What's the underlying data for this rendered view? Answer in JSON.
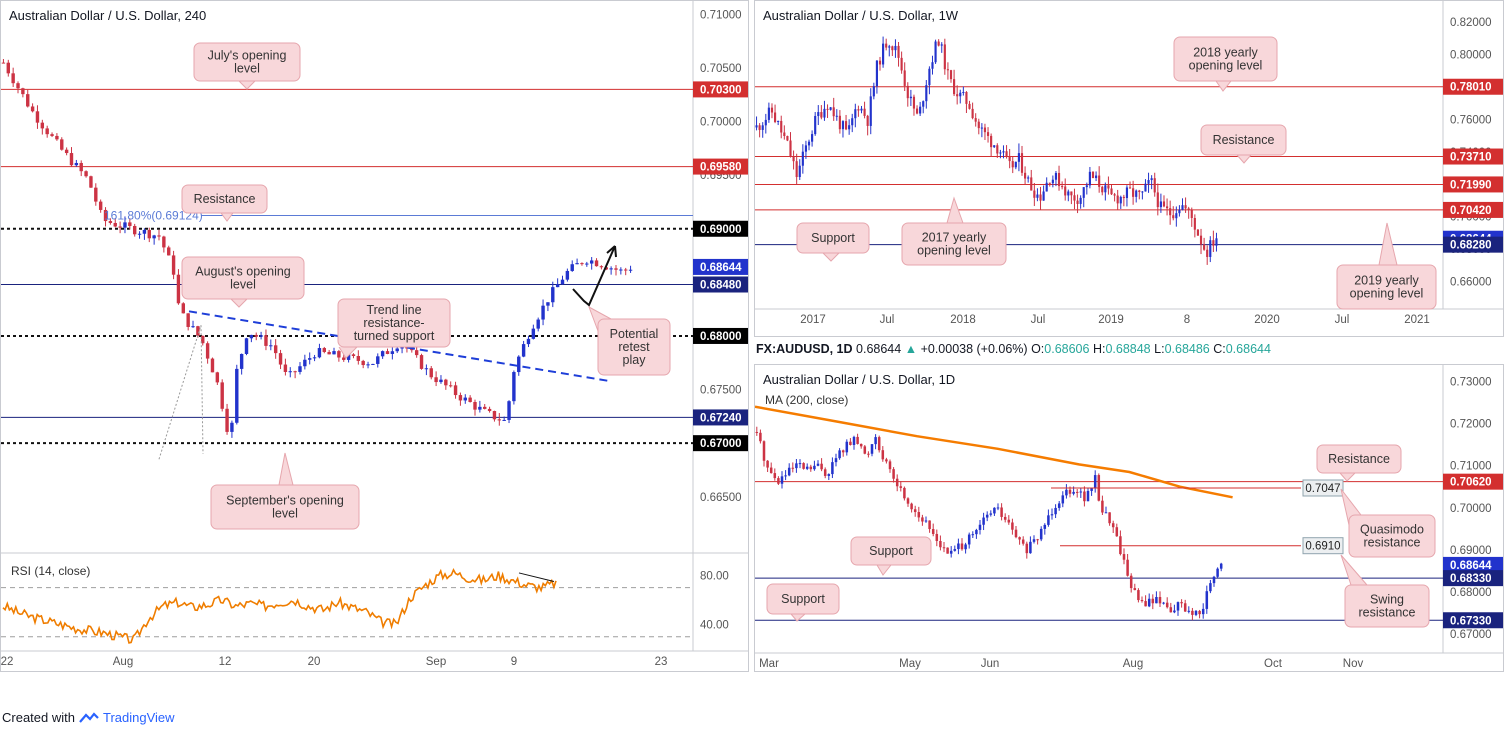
{
  "colors": {
    "up": "#2233cc",
    "down": "#cc3344",
    "support": "#1a237e",
    "resistance": "#d32f2f",
    "fib": "#5b7bd6",
    "ma": "#f57c00",
    "rsi": "#ef7d00",
    "box": "#f8d7da",
    "boxBorder": "#e6a6ad"
  },
  "footer": {
    "prefix": "Created with",
    "brand": "TradingView",
    "logo_icon": "tradingview-logo-icon"
  },
  "info_bar": {
    "symbol": "FX:AUDUSD, 1D",
    "last": "0.68644",
    "change_arrow": "▲",
    "change": "+0.00038 (+0.06%)",
    "open_label": "O:",
    "open": "0.68606",
    "high_label": "H:",
    "high": "0.68848",
    "low_label": "L:",
    "low": "0.68486",
    "close_label": "C:",
    "close": "0.68644"
  },
  "chart_data": [
    {
      "id": "h4",
      "type": "candlestick",
      "title": "Australian Dollar / U.S. Dollar, 240",
      "ylim": [
        0.6605,
        0.7105
      ],
      "y_ticks": [
        "0.71000",
        "0.70500",
        "0.70000",
        "0.69500",
        "0.69000",
        "0.68500",
        "0.68000",
        "0.67500",
        "0.67000",
        "0.66500"
      ],
      "x_ticks": [
        "22",
        "Aug",
        "12",
        "20",
        "Sep",
        "9",
        "23"
      ],
      "price_labels": [
        {
          "value": 0.703,
          "text": "0.70300",
          "kind": "resistance"
        },
        {
          "value": 0.6958,
          "text": "0.69580",
          "kind": "resistance"
        },
        {
          "value": 0.69,
          "text": "0.69000",
          "kind": "round"
        },
        {
          "value": 0.68644,
          "text": "0.68644",
          "kind": "last"
        },
        {
          "value": 0.6848,
          "text": "0.68480",
          "kind": "support"
        },
        {
          "value": 0.68,
          "text": "0.68000",
          "kind": "round"
        },
        {
          "value": 0.6724,
          "text": "0.67240",
          "kind": "support"
        },
        {
          "value": 0.67,
          "text": "0.67000",
          "kind": "round"
        }
      ],
      "fib_label": "161.80%(0.69124)",
      "annotations": [
        "July's opening level",
        "Resistance",
        "August's opening level",
        "Trend line resistance-turned support",
        "Potential retest play",
        "September's opening level"
      ],
      "path": [
        [
          0,
          0.7055
        ],
        [
          10,
          0.701
        ],
        [
          20,
          0.6975
        ],
        [
          30,
          0.6945
        ],
        [
          35,
          0.6908
        ],
        [
          45,
          0.69
        ],
        [
          55,
          0.6893
        ],
        [
          60,
          0.686
        ],
        [
          62,
          0.6823
        ],
        [
          70,
          0.6795
        ],
        [
          75,
          0.676
        ],
        [
          78,
          0.6725
        ],
        [
          80,
          0.67
        ],
        [
          82,
          0.6765
        ],
        [
          86,
          0.6805
        ],
        [
          95,
          0.679
        ],
        [
          100,
          0.676
        ],
        [
          110,
          0.6785
        ],
        [
          130,
          0.6775
        ],
        [
          140,
          0.6795
        ],
        [
          150,
          0.6765
        ],
        [
          160,
          0.6745
        ],
        [
          170,
          0.6728
        ],
        [
          177,
          0.672
        ],
        [
          180,
          0.677
        ],
        [
          186,
          0.6808
        ],
        [
          192,
          0.6835
        ],
        [
          198,
          0.6858
        ],
        [
          205,
          0.6872
        ],
        [
          210,
          0.6868
        ],
        [
          218,
          0.686
        ],
        [
          221,
          0.6864
        ]
      ],
      "xmax": 245,
      "rsi": {
        "label": "RSI (14, close)",
        "ylim": [
          20,
          95
        ],
        "levels": [
          70,
          30
        ],
        "y_ticks": [
          "80.00",
          "40.00"
        ],
        "values": [
          55,
          50,
          46,
          43,
          40,
          37,
          35,
          33,
          30,
          27,
          45,
          55,
          58,
          54,
          56,
          60,
          55,
          57,
          55,
          58,
          60,
          55,
          52,
          58,
          54,
          50,
          42,
          40,
          62,
          72,
          80,
          82,
          78,
          76,
          80,
          76,
          72,
          70,
          74
        ]
      }
    },
    {
      "id": "w1",
      "type": "candlestick",
      "title": "Australian Dollar / U.S. Dollar, 1W",
      "ylim": [
        0.645,
        0.828
      ],
      "y_ticks": [
        "0.82000",
        "0.80000",
        "0.78000",
        "0.76000",
        "0.74000",
        "0.72000",
        "0.70000",
        "0.68000",
        "0.66000"
      ],
      "x_ticks": [
        "2017",
        "Jul",
        "2018",
        "Jul",
        "2019",
        "8",
        "2020",
        "Jul",
        "2021"
      ],
      "price_labels": [
        {
          "value": 0.7801,
          "text": "0.78010",
          "kind": "resistance"
        },
        {
          "value": 0.7371,
          "text": "0.73710",
          "kind": "resistance"
        },
        {
          "value": 0.7199,
          "text": "0.71990",
          "kind": "resistance"
        },
        {
          "value": 0.7042,
          "text": "0.70420",
          "kind": "resistance"
        },
        {
          "value": 0.68644,
          "text": "0.68644",
          "kind": "last"
        },
        {
          "value": 0.6828,
          "text": "0.68280",
          "kind": "support"
        }
      ],
      "annotations": [
        "2018 yearly opening level",
        "Resistance",
        "Support",
        "2017 yearly opening level",
        "2019 yearly opening level"
      ],
      "path": [
        [
          0,
          0.755
        ],
        [
          15,
          0.765
        ],
        [
          30,
          0.745
        ],
        [
          40,
          0.725
        ],
        [
          50,
          0.745
        ],
        [
          60,
          0.762
        ],
        [
          70,
          0.77
        ],
        [
          80,
          0.76
        ],
        [
          90,
          0.75
        ],
        [
          100,
          0.77
        ],
        [
          110,
          0.76
        ],
        [
          120,
          0.795
        ],
        [
          130,
          0.81
        ],
        [
          140,
          0.8
        ],
        [
          150,
          0.775
        ],
        [
          160,
          0.76
        ],
        [
          170,
          0.79
        ],
        [
          180,
          0.81
        ],
        [
          190,
          0.785
        ],
        [
          200,
          0.775
        ],
        [
          210,
          0.77
        ],
        [
          220,
          0.755
        ],
        [
          230,
          0.748
        ],
        [
          240,
          0.742
        ],
        [
          250,
          0.73
        ],
        [
          260,
          0.735
        ],
        [
          270,
          0.72
        ],
        [
          280,
          0.712
        ],
        [
          290,
          0.725
        ],
        [
          300,
          0.722
        ],
        [
          310,
          0.712
        ],
        [
          320,
          0.712
        ],
        [
          330,
          0.725
        ],
        [
          340,
          0.72
        ],
        [
          350,
          0.712
        ],
        [
          360,
          0.712
        ],
        [
          370,
          0.715
        ],
        [
          380,
          0.712
        ],
        [
          390,
          0.722
        ],
        [
          400,
          0.705
        ],
        [
          410,
          0.702
        ],
        [
          420,
          0.708
        ],
        [
          430,
          0.7
        ],
        [
          440,
          0.685
        ],
        [
          445,
          0.678
        ],
        [
          455,
          0.688
        ]
      ],
      "xmax": 680
    },
    {
      "id": "d1",
      "type": "candlestick",
      "title": "Australian Dollar / U.S. Dollar, 1D",
      "ylim": [
        0.666,
        0.732
      ],
      "y_ticks": [
        "0.73000",
        "0.72000",
        "0.71000",
        "0.70000",
        "0.69000",
        "0.68000",
        "0.67000"
      ],
      "x_ticks": [
        "Mar",
        "May",
        "Jun",
        "Aug",
        "Oct",
        "Nov"
      ],
      "ma_label": "MA (200, close)",
      "price_labels": [
        {
          "value": 0.7062,
          "text": "0.70620",
          "kind": "resistance"
        },
        {
          "value": 0.68644,
          "text": "0.68644",
          "kind": "last"
        },
        {
          "value": 0.6833,
          "text": "0.68330",
          "kind": "support"
        },
        {
          "value": 0.6733,
          "text": "0.67330",
          "kind": "support"
        }
      ],
      "inline_labels": [
        {
          "value": 0.7047,
          "text": "0.7047"
        },
        {
          "value": 0.691,
          "text": "0.6910"
        }
      ],
      "annotations": [
        "Resistance",
        "Quasimodo resistance",
        "Support",
        "Support",
        "Swing resistance"
      ],
      "path": [
        [
          0,
          0.718
        ],
        [
          10,
          0.71
        ],
        [
          20,
          0.706
        ],
        [
          30,
          0.708
        ],
        [
          40,
          0.71
        ],
        [
          50,
          0.709
        ],
        [
          60,
          0.71
        ],
        [
          70,
          0.708
        ],
        [
          80,
          0.712
        ],
        [
          90,
          0.715
        ],
        [
          100,
          0.716
        ],
        [
          110,
          0.712
        ],
        [
          120,
          0.718
        ],
        [
          125,
          0.712
        ],
        [
          130,
          0.71
        ],
        [
          140,
          0.706
        ],
        [
          150,
          0.702
        ],
        [
          160,
          0.699
        ],
        [
          170,
          0.696
        ],
        [
          180,
          0.693
        ],
        [
          190,
          0.689
        ],
        [
          200,
          0.69
        ],
        [
          210,
          0.692
        ],
        [
          220,
          0.694
        ],
        [
          230,
          0.698
        ],
        [
          240,
          0.7
        ],
        [
          250,
          0.697
        ],
        [
          260,
          0.693
        ],
        [
          270,
          0.69
        ],
        [
          280,
          0.692
        ],
        [
          290,
          0.697
        ],
        [
          300,
          0.701
        ],
        [
          310,
          0.704
        ],
        [
          320,
          0.705
        ],
        [
          330,
          0.702
        ],
        [
          340,
          0.707
        ],
        [
          345,
          0.7
        ],
        [
          355,
          0.697
        ],
        [
          365,
          0.69
        ],
        [
          375,
          0.682
        ],
        [
          385,
          0.677
        ],
        [
          395,
          0.678
        ],
        [
          405,
          0.678
        ],
        [
          415,
          0.676
        ],
        [
          425,
          0.677
        ],
        [
          435,
          0.675
        ],
        [
          445,
          0.674
        ],
        [
          452,
          0.68
        ],
        [
          460,
          0.684
        ],
        [
          466,
          0.6864
        ]
      ],
      "ma_path": [
        [
          0,
          0.724
        ],
        [
          80,
          0.7205
        ],
        [
          160,
          0.717
        ],
        [
          240,
          0.714
        ],
        [
          320,
          0.7103
        ],
        [
          370,
          0.7085
        ],
        [
          420,
          0.705
        ],
        [
          472,
          0.7025
        ]
      ],
      "xmax": 680
    }
  ]
}
